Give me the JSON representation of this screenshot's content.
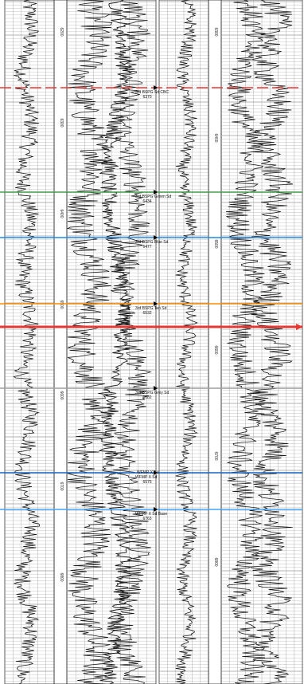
{
  "colors": {
    "paper": "#ffffff",
    "grid": "#9a9a9a",
    "curve": "#1a1a1a",
    "track_border": "#333333"
  },
  "tracks": [
    {
      "depth_labels": [
        "6200",
        "6300",
        "6400",
        "6500",
        "6600",
        "6700",
        "6800"
      ]
    },
    {
      "depth_labels": [
        "6300",
        "6400",
        "6500",
        "6600",
        "6700",
        "6800"
      ]
    }
  ],
  "formation_tops": [
    {
      "name": "3rd BSPG Sd CBC",
      "depth": "6370",
      "color": "#e53935",
      "dashed": true
    },
    {
      "name": "3rd BSPG Green Sd",
      "depth": "6434",
      "color": "#43a047",
      "dashed": false
    },
    {
      "name": "3rd BSPG Blue Sd",
      "depth": "6477",
      "color": "#1e88e5",
      "dashed": false
    },
    {
      "name": "3rd BSPG Tan Sd",
      "depth": "6532",
      "color": "#fb8c00",
      "dashed": false
    },
    {
      "name": "",
      "depth": "",
      "color": "#e53935",
      "dashed": false,
      "arrow": true
    },
    {
      "name": "3rd BSPG Grey Sd",
      "depth": "6682",
      "color": "#9e9e9e",
      "dashed": false
    },
    {
      "name": "WFMP X Sd",
      "depth": "6575",
      "color": "#1565c0",
      "dashed": false,
      "extra": "WFMP X BU"
    },
    {
      "name": "WFMP X Sd Base",
      "depth": "6763",
      "color": "#42a5f5",
      "dashed": false
    }
  ]
}
